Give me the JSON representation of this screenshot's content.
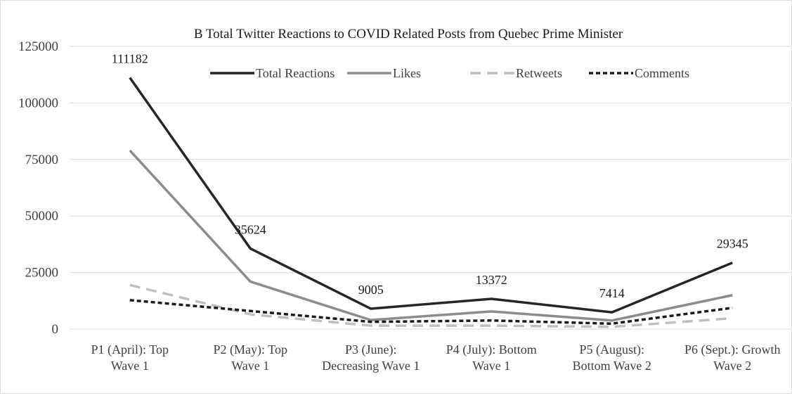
{
  "chart_data": {
    "type": "line",
    "title": "B Total Twitter Reactions to COVID Related Posts from Quebec Prime Minister",
    "xlabel": "",
    "ylabel": "",
    "ylim": [
      0,
      125000
    ],
    "yticks": [
      0,
      25000,
      50000,
      75000,
      100000,
      125000
    ],
    "grid": true,
    "legend_position": "top",
    "categories": [
      [
        "P1 (April): Top",
        "Wave 1"
      ],
      [
        "P2 (May): Top",
        "Wave 1"
      ],
      [
        "P3 (June):",
        "Decreasing Wave 1"
      ],
      [
        "P4 (July): Bottom",
        "Wave 1"
      ],
      [
        "P5 (August):",
        "Bottom Wave 2"
      ],
      [
        "P6 (Sept.): Growth",
        "Wave 2"
      ]
    ],
    "series": [
      {
        "name": "Total Reactions",
        "values": [
          111182,
          35624,
          9005,
          13372,
          7414,
          29345
        ],
        "color": "#262626",
        "dash": "solid",
        "data_labels": true
      },
      {
        "name": "Likes",
        "values": [
          79000,
          21000,
          4000,
          7800,
          3800,
          15000
        ],
        "color": "#8c8c8c",
        "dash": "solid",
        "data_labels": false
      },
      {
        "name": "Retweets",
        "values": [
          19500,
          6500,
          1500,
          1500,
          1000,
          4800
        ],
        "color": "#bfbfbf",
        "dash": "long-dash",
        "data_labels": false
      },
      {
        "name": "Comments",
        "values": [
          12800,
          8000,
          3200,
          3800,
          2400,
          9400
        ],
        "color": "#1a1a1a",
        "dash": "short-dash",
        "data_labels": false
      }
    ]
  }
}
